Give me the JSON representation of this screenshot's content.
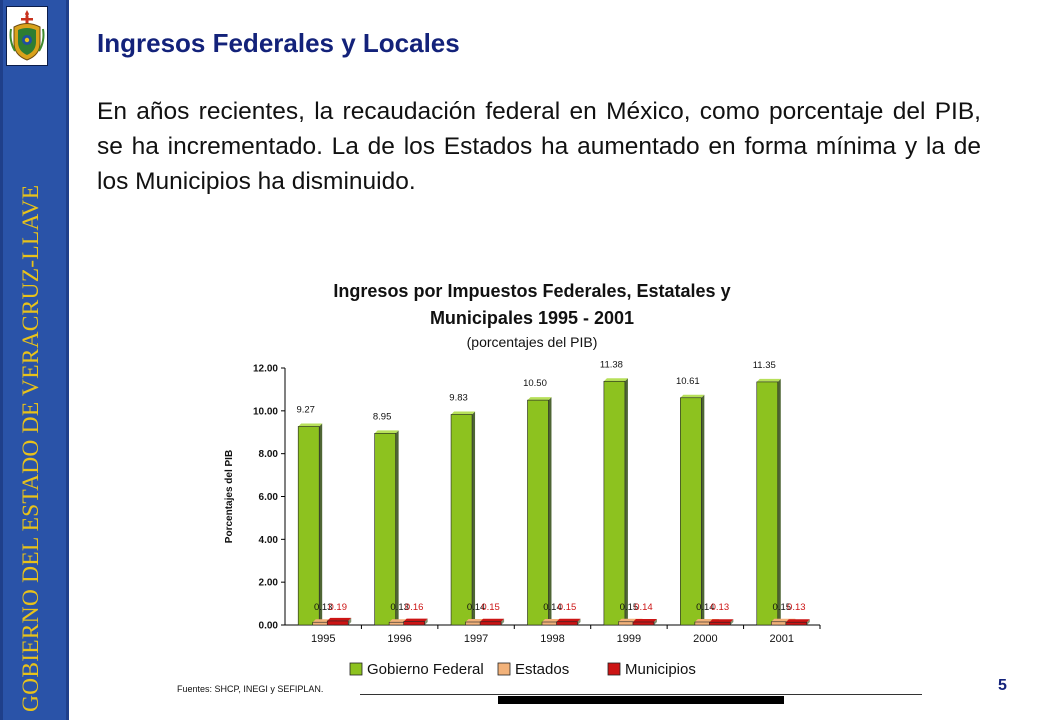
{
  "sidebar": {
    "text": "GOBIERNO DEL ESTADO DE VERACRUZ-LLAVE",
    "color": "#2a53a8",
    "text_color": "#e8c21a",
    "logo_icon": "veracruz-coat-of-arms-icon"
  },
  "slide": {
    "title": "Ingresos Federales y Locales",
    "paragraph": "En años recientes, la recaudación federal en México, como porcentaje del PIB, se ha incrementado. La de los Estados ha aumentado en forma mínima y la de los Municipios ha disminuido.",
    "footer_note": "Fuentes: SHCP, INEGI y SEFIPLAN.",
    "page_number": "5"
  },
  "chart_data": {
    "type": "bar",
    "title_line1": "Ingresos por Impuestos Federales, Estatales y",
    "title_line2": "Municipales 1995 - 2001",
    "subtitle": "(porcentajes del PIB)",
    "ylabel": "Porcentajes del PIB",
    "ylim": [
      0,
      12
    ],
    "yticks": [
      "0.00",
      "2.00",
      "4.00",
      "6.00",
      "8.00",
      "10.00",
      "12.00"
    ],
    "categories": [
      "1995",
      "1996",
      "1997",
      "1998",
      "1999",
      "2000",
      "2001"
    ],
    "series": [
      {
        "name": "Gobierno Federal",
        "color": "#8dc21f",
        "label_color": "#111111",
        "values": [
          9.27,
          8.95,
          9.83,
          10.5,
          11.38,
          10.61,
          11.35
        ],
        "labels": [
          "9.27",
          "8.95",
          "9.83",
          "10.50",
          "11.38",
          "10.61",
          "11.35"
        ]
      },
      {
        "name": "Estados",
        "color": "#f2b27a",
        "label_color": "#111111",
        "values": [
          0.13,
          0.13,
          0.14,
          0.14,
          0.15,
          0.14,
          0.15
        ],
        "labels": [
          "0.13",
          "0.13",
          "0.14",
          "0.14",
          "0.15",
          "0.14",
          "0.15"
        ]
      },
      {
        "name": "Municipios",
        "color": "#cc1414",
        "label_color": "#cc1414",
        "values": [
          0.19,
          0.16,
          0.15,
          0.15,
          0.14,
          0.13,
          0.13
        ],
        "labels": [
          "0.19",
          "0.16",
          "0.15",
          "0.15",
          "0.14",
          "0.13",
          "0.13"
        ]
      }
    ],
    "legend_position": "bottom",
    "grid": false
  }
}
